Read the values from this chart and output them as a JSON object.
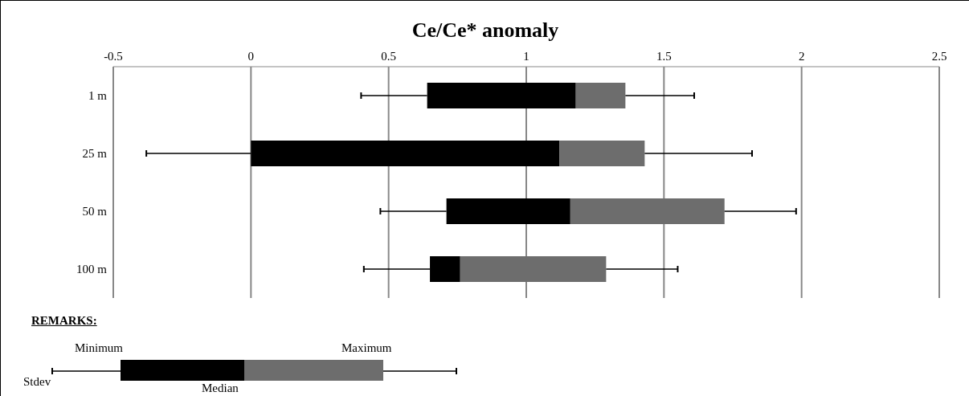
{
  "chart_data": {
    "type": "bar",
    "title": "Ce/Ce* anomaly",
    "orientation": "horizontal",
    "stacked": true,
    "categories": [
      "1 m",
      "25 m",
      "50 m",
      "100 m"
    ],
    "series": [
      {
        "color": "#000000",
        "base": [
          0.64,
          0,
          0.71,
          0.65
        ],
        "values": [
          0.54,
          1.12,
          0.45,
          0.11
        ]
      },
      {
        "color": "#6d6d6d",
        "values": [
          0.18,
          0.31,
          0.56,
          0.53
        ],
        "errors": [
          [
            0.4,
            1.61
          ],
          [
            -0.38,
            1.82
          ],
          [
            0.47,
            1.98
          ],
          [
            0.41,
            1.55
          ]
        ]
      }
    ],
    "xlim": [
      -0.5,
      2.5
    ],
    "xticks": [
      -0.5,
      0,
      0.5,
      1,
      1.5,
      2,
      2.5
    ],
    "grid": "x",
    "legend": false,
    "annotations": [
      "REMARKS:",
      "Minimum",
      "Maximum",
      "Stdev",
      "Median"
    ]
  }
}
